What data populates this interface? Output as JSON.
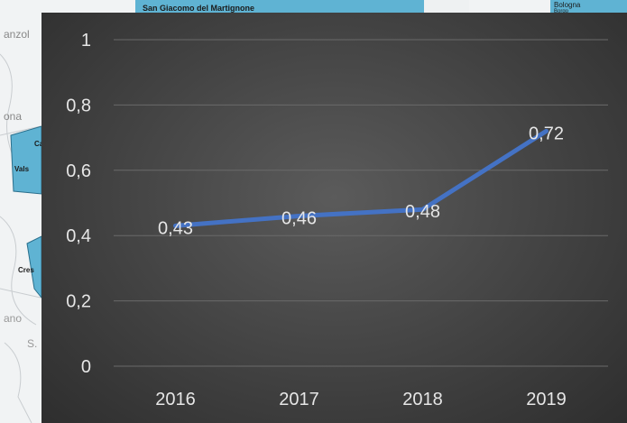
{
  "background_map": {
    "labels": [
      "San Giacomo del Martignone",
      "anzol",
      "ona",
      "Ca",
      "Vals",
      "Cres",
      "ano",
      "S.",
      "Bologna",
      "Borgo"
    ]
  },
  "colors": {
    "line": "#4472c4",
    "grid": "#6a6a6a",
    "text": "#e6e6e6",
    "map_water": "#5fb3d3"
  },
  "chart_data": {
    "type": "line",
    "title": "",
    "xlabel": "",
    "ylabel": "",
    "categories": [
      "2016",
      "2017",
      "2018",
      "2019"
    ],
    "series": [
      {
        "values": [
          0.43,
          0.46,
          0.48,
          0.72
        ]
      }
    ],
    "data_labels": [
      "0,43",
      "0,46",
      "0,48",
      "0,72"
    ],
    "y_ticks": [
      0,
      0.2,
      0.4,
      0.6,
      0.8,
      1
    ],
    "y_tick_labels": [
      "0",
      "0,2",
      "0,4",
      "0,6",
      "0,8",
      "1"
    ],
    "ylim": [
      0,
      1
    ],
    "grid": true,
    "legend": "none"
  }
}
